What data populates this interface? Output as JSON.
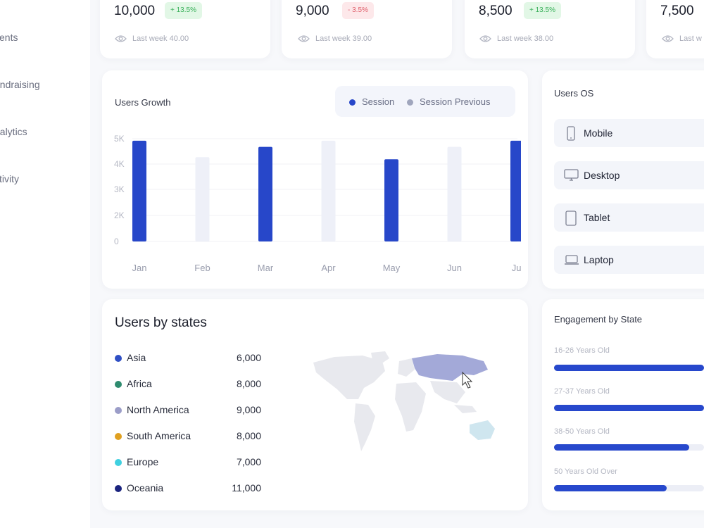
{
  "sidebar": {
    "items": [
      {
        "label": "vents"
      },
      {
        "label": "undraising"
      },
      {
        "label": "nalytics"
      },
      {
        "label": "ctivity"
      }
    ]
  },
  "stats": [
    {
      "value": "10,000",
      "change": "+ 13.5%",
      "trend": "up",
      "footnote": "Last week 40.00"
    },
    {
      "value": "9,000",
      "change": "- 3.5%",
      "trend": "down",
      "footnote": "Last week 39.00"
    },
    {
      "value": "8,500",
      "change": "+ 13.5%",
      "trend": "up",
      "footnote": "Last week 38.00"
    },
    {
      "value": "7,500",
      "change": "",
      "trend": "up",
      "footnote": "Last w"
    }
  ],
  "users_growth": {
    "title": "Users Growth",
    "legend": {
      "session": "Session",
      "session_previous": "Session Previous"
    },
    "colors": {
      "session": "#2747c9",
      "session_previous": "#eef0f8",
      "legend_previous_dot": "#a0a6bd"
    }
  },
  "chart_data": {
    "type": "bar",
    "title": "Users Growth",
    "categories": [
      "Jan",
      "Feb",
      "Mar",
      "Apr",
      "May",
      "Jun",
      "Jul"
    ],
    "series": [
      {
        "name": "Session",
        "values": [
          4900,
          null,
          4600,
          null,
          4000,
          null,
          4900
        ]
      },
      {
        "name": "Session Previous",
        "values": [
          null,
          4100,
          null,
          4900,
          null,
          4600,
          null
        ]
      }
    ],
    "yticks": [
      "0",
      "2K",
      "3K",
      "4K",
      "5K"
    ],
    "ylim": [
      0,
      5000
    ],
    "legend_position": "top-right",
    "grid": true
  },
  "users_os": {
    "title": "Users OS",
    "items": [
      {
        "label": "Mobile",
        "icon": "mobile-icon"
      },
      {
        "label": "Desktop",
        "icon": "desktop-icon"
      },
      {
        "label": "Tablet",
        "icon": "tablet-icon"
      },
      {
        "label": "Laptop",
        "icon": "laptop-icon"
      }
    ]
  },
  "users_by_states": {
    "title": "Users by states",
    "rows": [
      {
        "name": "Asia",
        "value": "6,000",
        "color": "#2f4fc4"
      },
      {
        "name": "Africa",
        "value": "8,000",
        "color": "#2e8b6f"
      },
      {
        "name": "North America",
        "value": "9,000",
        "color": "#9b9dc8"
      },
      {
        "name": "South America",
        "value": "8,000",
        "color": "#e0a020"
      },
      {
        "name": "Europe",
        "value": "7,000",
        "color": "#3fd0e0"
      },
      {
        "name": "Oceania",
        "value": "11,000",
        "color": "#1a237e"
      }
    ]
  },
  "engagement": {
    "title": "Engagement by State",
    "rows": [
      {
        "label": "16-26 Years Old",
        "fraction": 1.0
      },
      {
        "label": "27-37 Years Old",
        "fraction": 1.0
      },
      {
        "label": "38-50 Years Old",
        "fraction": 0.9
      },
      {
        "label": "50 Years Old Over",
        "fraction": 0.75
      }
    ]
  }
}
